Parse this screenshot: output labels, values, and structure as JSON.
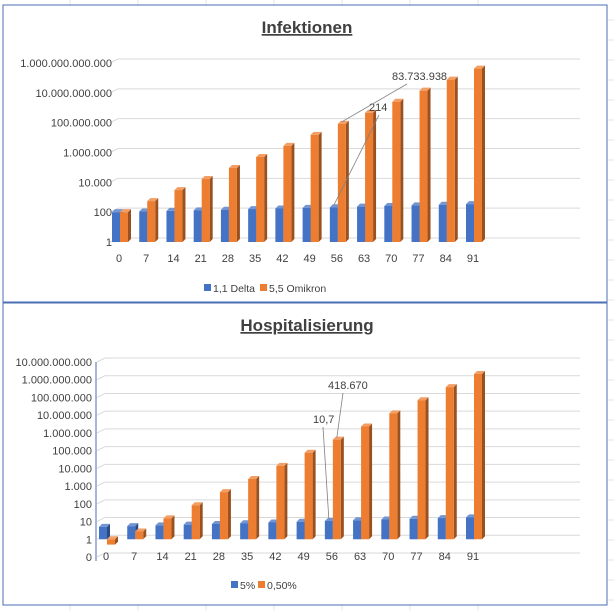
{
  "colors": {
    "series1": "#4472c4",
    "series2": "#ed7d31",
    "grid": "#d9d9d9",
    "frame": "#4a6fb5"
  },
  "chart_data": [
    {
      "type": "bar",
      "title": "Infektionen",
      "xlabel": "",
      "ylabel": "",
      "yscale": "log",
      "yticks": [
        1,
        100,
        10000,
        1000000,
        100000000,
        10000000000,
        1000000000000
      ],
      "ytick_labels": [
        "1",
        "100",
        "10.000",
        "1.000.000",
        "100.000.000",
        "10.000.000.000",
        "1.000.000.000.000"
      ],
      "ylim": [
        1,
        1000000000000
      ],
      "categories": [
        "0",
        "7",
        "14",
        "21",
        "28",
        "35",
        "42",
        "49",
        "56",
        "63",
        "70",
        "77",
        "84",
        "91"
      ],
      "series": [
        {
          "name": "1,1 Delta",
          "values": [
            100,
            110,
            121,
            133.1,
            146.4,
            161.1,
            177.2,
            194.9,
            214.4,
            235.8,
            259.4,
            285.3,
            313.8,
            345.2
          ]
        },
        {
          "name": "5,5 Omikron",
          "values": [
            100,
            550,
            3025,
            16638,
            91506,
            503284,
            2768064,
            15224352,
            83733938,
            460536658,
            2532951618,
            13931233899,
            76621786445,
            421419825448
          ]
        }
      ],
      "annotations": [
        {
          "text": "214",
          "category": "56",
          "series": "1,1 Delta"
        },
        {
          "text": "83.733.938",
          "category": "56",
          "series": "5,5 Omikron"
        }
      ],
      "legend": "bottom",
      "grid": true
    },
    {
      "type": "bar",
      "title": "Hospitalisierung",
      "xlabel": "",
      "ylabel": "",
      "yscale": "log",
      "yticks": [
        0.1,
        1,
        10,
        100,
        1000,
        10000,
        100000,
        1000000,
        10000000,
        100000000,
        1000000000,
        10000000000
      ],
      "ytick_labels": [
        "0",
        "1",
        "10",
        "100",
        "1.000",
        "10.000",
        "100.000",
        "1.000.000",
        "10.000.000",
        "100.000.000",
        "1.000.000.000",
        "10.000.000.000"
      ],
      "ylim": [
        0.1,
        10000000000
      ],
      "categories": [
        "0",
        "7",
        "14",
        "21",
        "28",
        "35",
        "42",
        "49",
        "56",
        "63",
        "70",
        "77",
        "84",
        "91"
      ],
      "series": [
        {
          "name": "5%",
          "values": [
            5,
            5.5,
            6.05,
            6.66,
            7.32,
            8.05,
            8.86,
            9.74,
            10.7,
            11.8,
            13.0,
            14.3,
            15.7,
            17.3
          ]
        },
        {
          "name": "0,50%",
          "values": [
            0.5,
            2.75,
            15.1,
            83.2,
            457.5,
            2516,
            13840,
            76122,
            418670,
            2302683,
            12664758,
            69656169,
            383108932,
            2107099127
          ]
        }
      ],
      "annotations": [
        {
          "text": "10,7",
          "category": "56",
          "series": "5%"
        },
        {
          "text": "418.670",
          "category": "56",
          "series": "0,50%"
        }
      ],
      "legend": "bottom",
      "grid": true
    }
  ]
}
